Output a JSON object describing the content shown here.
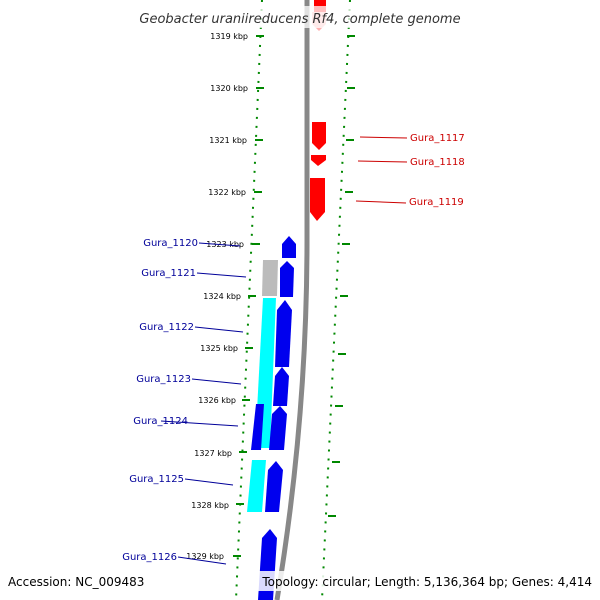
{
  "title": "Geobacter uraniireducens Rf4, complete genome",
  "accession": "Accession: NC_009483",
  "summary": "Topology: circular; Length: 5,136,364 bp; Genes: 4,414",
  "colors": {
    "backbone": "#888888",
    "tick": "#008800",
    "forward_gene": "#ff0000",
    "forward_label": "#cc0000",
    "reverse_gene": "#0000ee",
    "reverse_label": "#000099",
    "cds_highlight": "#00ffff",
    "pseudo": "#bbbbbb"
  },
  "ticks": [
    "1319 kbp",
    "1320 kbp",
    "1321 kbp",
    "1322 kbp",
    "1323 kbp",
    "1324 kbp",
    "1325 kbp",
    "1326 kbp",
    "1327 kbp",
    "1328 kbp",
    "1329 kbp"
  ],
  "forward_genes": [
    "Gura_1117",
    "Gura_1118",
    "Gura_1119"
  ],
  "reverse_genes": [
    "Gura_1120",
    "Gura_1121",
    "Gura_1122",
    "Gura_1123",
    "Gura_1124",
    "Gura_1125",
    "Gura_1126"
  ]
}
